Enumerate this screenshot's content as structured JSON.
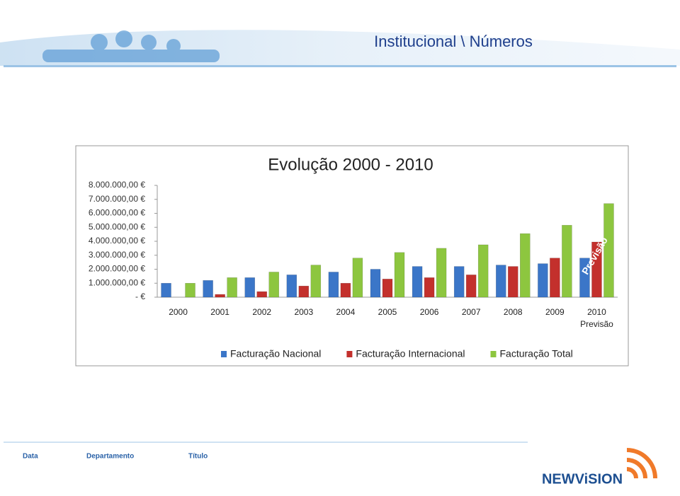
{
  "header": {
    "title": "Institucional \\ Números"
  },
  "footer": {
    "date": "Data",
    "department": "Departamento",
    "doc_title": "Título",
    "logo": "NEWViSION"
  },
  "chart_data": {
    "type": "bar",
    "title": "Evolução 2000 - 2010",
    "categories": [
      "2000",
      "2001",
      "2002",
      "2003",
      "2004",
      "2005",
      "2006",
      "2007",
      "2008",
      "2009",
      "2010\nPrevisão"
    ],
    "series": [
      {
        "name": "Facturação Nacional",
        "color": "#3b76c8",
        "values": [
          1000000,
          1200000,
          1400000,
          1600000,
          1800000,
          2000000,
          2200000,
          2200000,
          2300000,
          2400000,
          2800000
        ]
      },
      {
        "name": "Facturação Internacional",
        "color": "#c3302c",
        "values": [
          0,
          200000,
          400000,
          800000,
          1000000,
          1300000,
          1400000,
          1600000,
          2200000,
          2800000,
          3950000
        ]
      },
      {
        "name": "Facturação Total",
        "color": "#8dc63f",
        "values": [
          1000000,
          1400000,
          1800000,
          2300000,
          2800000,
          3200000,
          3500000,
          3750000,
          4550000,
          5150000,
          6700000
        ]
      }
    ],
    "annotation": "Previsão",
    "ylim": [
      0,
      8000000
    ],
    "yticks": [
      {
        "value": 0,
        "label": "- €"
      },
      {
        "value": 1000000,
        "label": "1.000.000,00 €"
      },
      {
        "value": 2000000,
        "label": "2.000.000,00 €"
      },
      {
        "value": 3000000,
        "label": "3.000.000,00 €"
      },
      {
        "value": 4000000,
        "label": "4.000.000,00 €"
      },
      {
        "value": 5000000,
        "label": "5.000.000,00 €"
      },
      {
        "value": 6000000,
        "label": "6.000.000,00 €"
      },
      {
        "value": 7000000,
        "label": "7.000.000,00 €"
      },
      {
        "value": 8000000,
        "label": "8.000.000,00 €"
      }
    ],
    "legend": "bottom"
  }
}
